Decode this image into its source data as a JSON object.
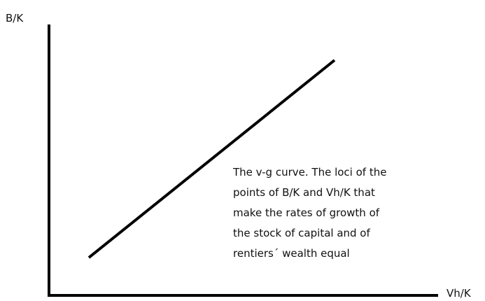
{
  "y_axis_label": "B/K",
  "x_axis_label": "Vh/K",
  "annotation": [
    "The v-g curve. The loci of the",
    "points of B/K and Vh/K that",
    "make the rates of growth of",
    "the stock of capital and of",
    "rentiers´ wealth equal"
  ]
}
